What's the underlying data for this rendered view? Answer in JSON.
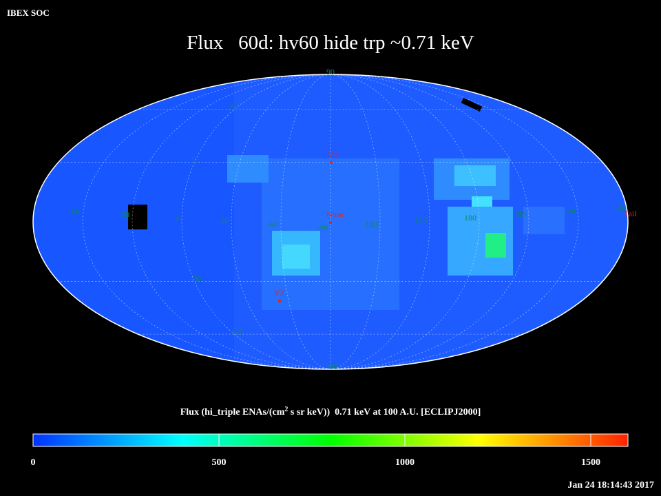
{
  "header": {
    "corner": "IBEX SOC",
    "title": "Flux   60d: hv60 hide trp ~0.71 keV"
  },
  "map": {
    "projection": "mollweide",
    "center_lon": -90,
    "lat_ticks": [
      90,
      60,
      30,
      -30,
      -60,
      -90
    ],
    "lon_ticks": [
      60,
      30,
      0,
      -30,
      -60,
      -90,
      -120,
      -150,
      180,
      150,
      120,
      90
    ],
    "markers": {
      "v1": "V1",
      "nose": "Nose",
      "v2": "V2",
      "tail": "Tail"
    }
  },
  "colorbar": {
    "label": [
      "Flux (hi_triple ENAs/(cm",
      "2",
      " s sr keV))  0.71 keV at 100 A.U. [ECLIPJ2000]"
    ],
    "lim": [
      0,
      1600
    ],
    "ticks": [
      0,
      500,
      1000,
      1500
    ],
    "colors": [
      "#0033ff",
      "#00ffff",
      "#00ff00",
      "#ffff00",
      "#ff2200"
    ]
  },
  "footer": {
    "timestamp": "Jan 24 18:14:43 2017"
  }
}
